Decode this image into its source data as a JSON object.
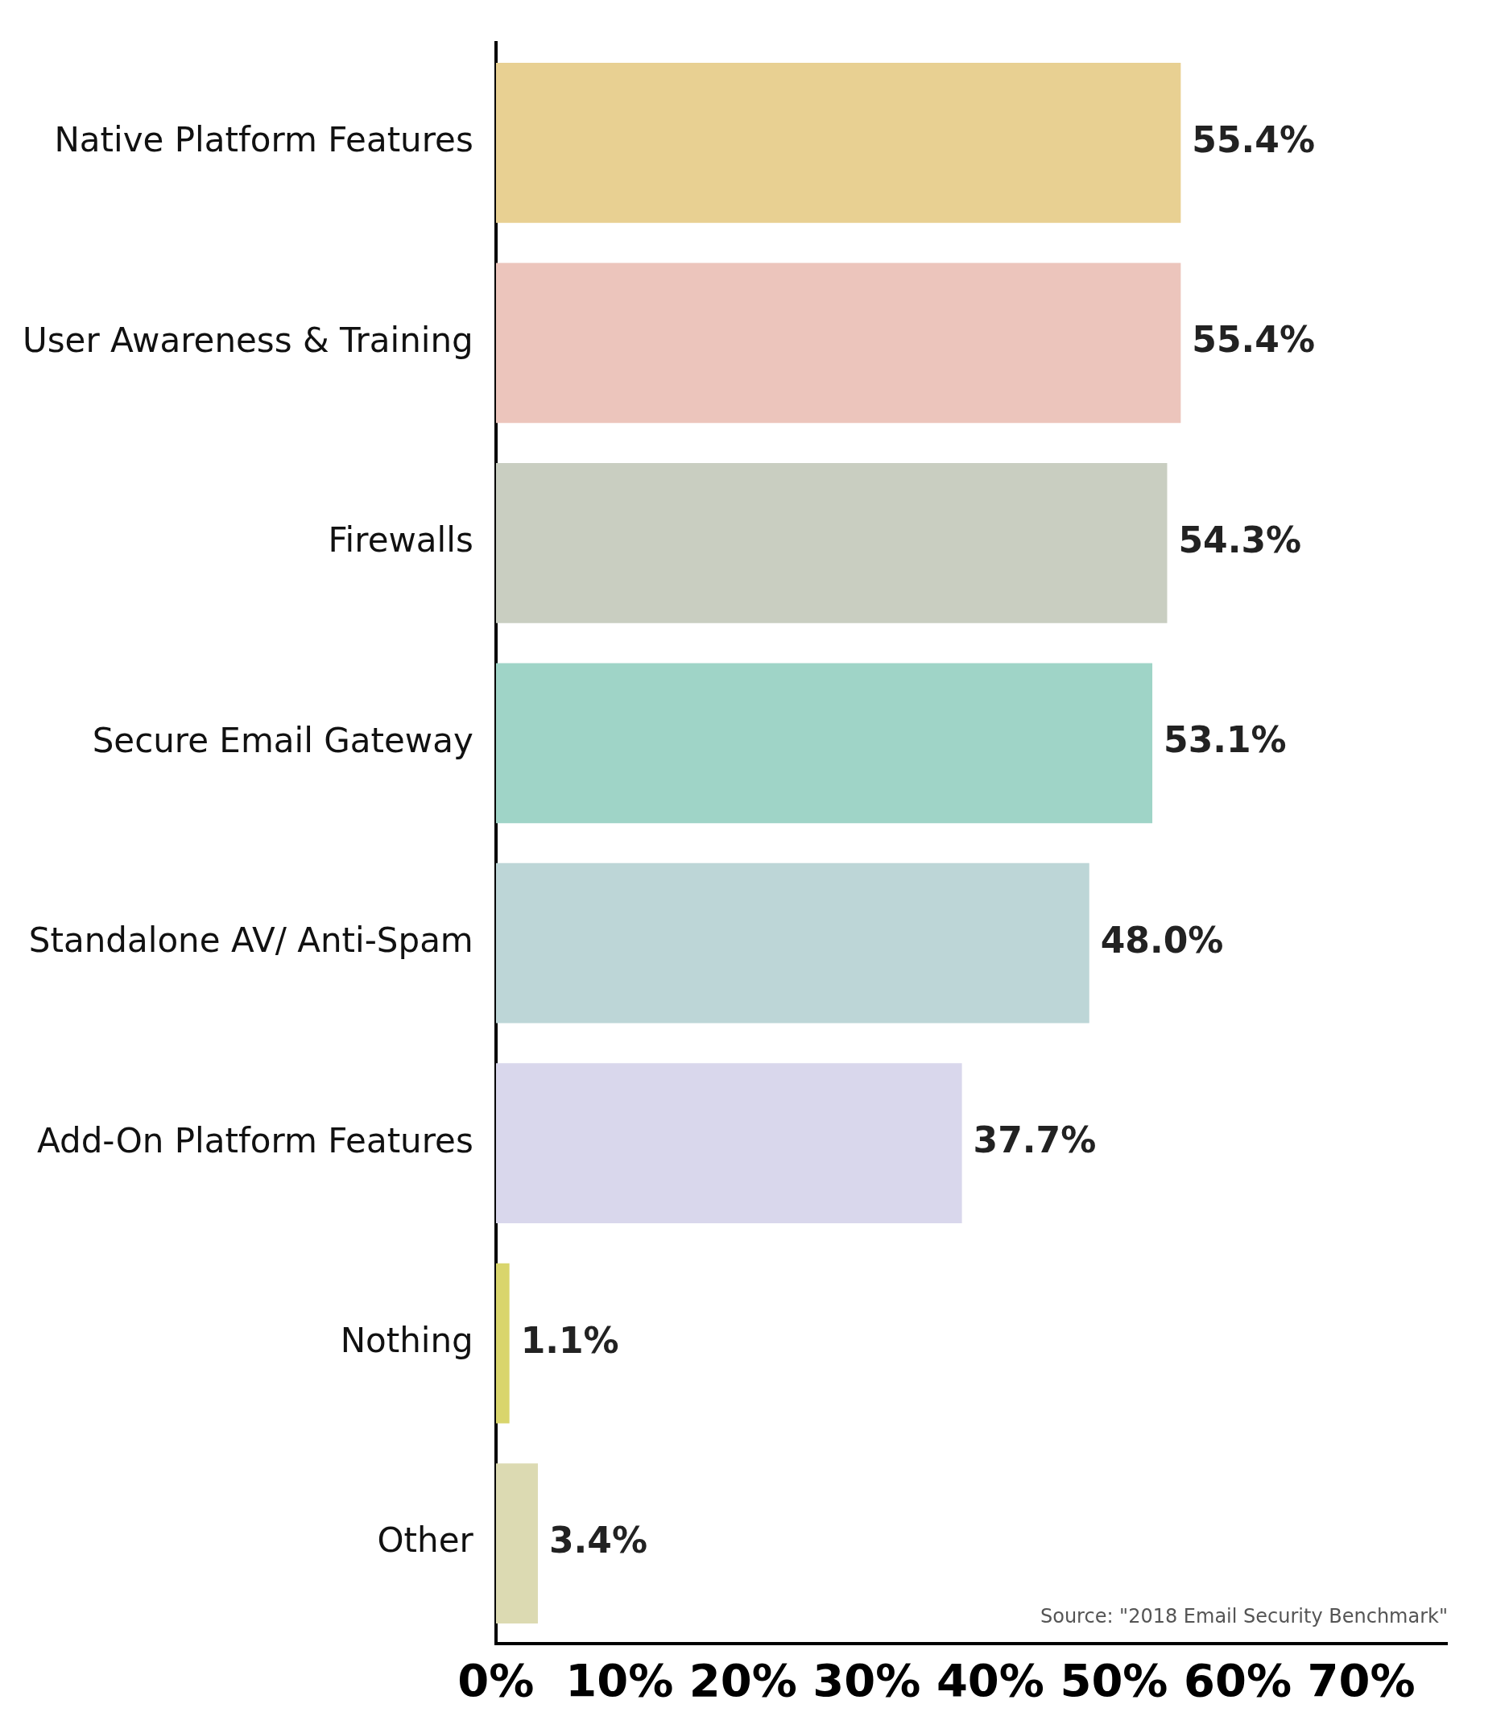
{
  "chart_data": {
    "type": "bar",
    "orientation": "horizontal",
    "categories": [
      "Native Platform Features",
      "User Awareness & Training",
      "Firewalls",
      "Secure Email Gateway",
      "Standalone AV/ Anti-Spam",
      "Add-On Platform Features",
      "Nothing",
      "Other"
    ],
    "values": [
      55.4,
      55.4,
      54.3,
      53.1,
      48.0,
      37.7,
      1.1,
      3.4
    ],
    "colors": [
      "#e8d092",
      "#ecc5bc",
      "#c9cec1",
      "#9fd4c7",
      "#bdd6d7",
      "#d9d7ec",
      "#d9d56c",
      "#dcdab2"
    ],
    "value_labels": [
      "55.4%",
      "55.4%",
      "54.3%",
      "53.1%",
      "48.0%",
      "37.7%",
      "1.1%",
      "3.4%"
    ],
    "xlim": [
      0,
      77
    ],
    "xticks": [
      {
        "value": 0,
        "label": "0%"
      },
      {
        "value": 10,
        "label": "10%"
      },
      {
        "value": 20,
        "label": "20%"
      },
      {
        "value": 30,
        "label": "30%"
      },
      {
        "value": 40,
        "label": "40%"
      },
      {
        "value": 50,
        "label": "50%"
      },
      {
        "value": 60,
        "label": "60%"
      },
      {
        "value": 70,
        "label": "70%"
      }
    ],
    "grid": false,
    "legend": false,
    "annotations": [
      "Source: \"2018 Email Security Benchmark\""
    ]
  }
}
